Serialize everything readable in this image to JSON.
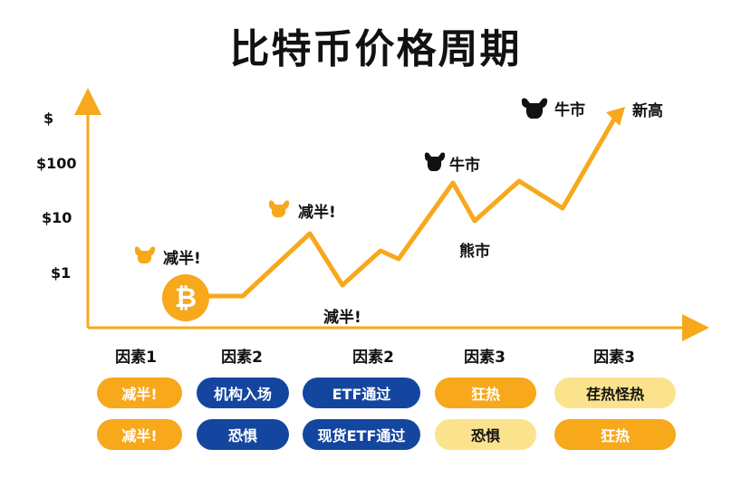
{
  "title": "比特币价格周期",
  "y_labels": [
    "$",
    "$100",
    "$10",
    "$1"
  ],
  "annotations": {
    "halving1": "减半!",
    "halving2": "减半!",
    "halving3": "減半!",
    "bull1": "牛市",
    "bear": "熊市",
    "bull2": "牛市",
    "new_high": "新高"
  },
  "bitcoin_symbol": "₿",
  "factors": [
    "因素1",
    "因素2",
    "因素2",
    "因素3",
    "因素3"
  ],
  "pills_row1": [
    "减半!",
    "机构入场",
    "ETF通过",
    "狂热",
    "荏热怪热"
  ],
  "pills_row2": [
    "减半!",
    "恐惧",
    "现货ETF通过",
    "恐惧",
    "狂热"
  ],
  "colors": {
    "orange": "#F7A81B",
    "blue": "#1446A0",
    "cream": "#FBE38E",
    "line": "#F7A81B"
  },
  "icons": [
    "bitcoin-icon",
    "bull-icon"
  ]
}
